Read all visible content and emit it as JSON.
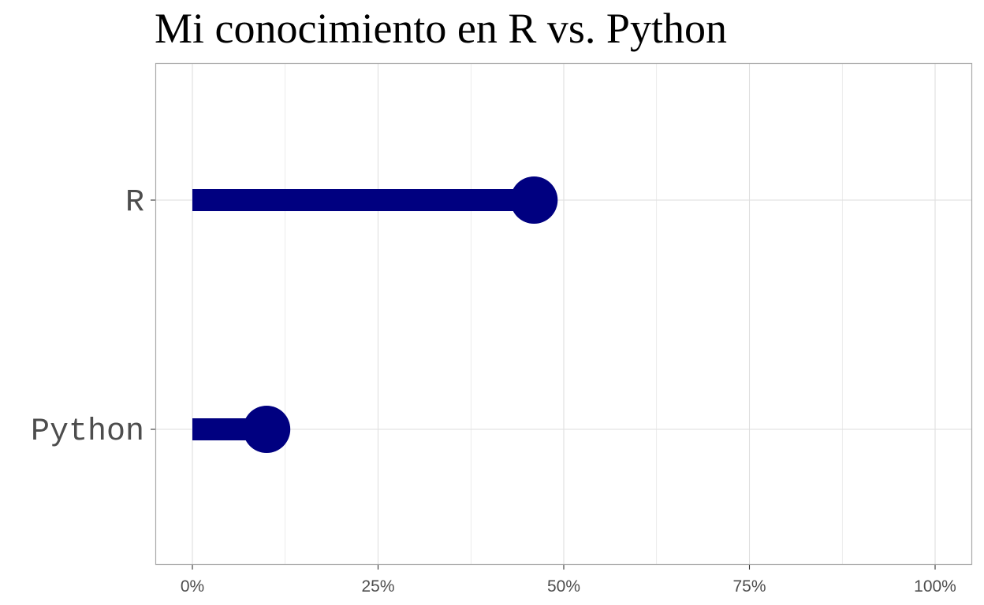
{
  "chart_data": {
    "type": "bar",
    "subtype": "lollipop",
    "orientation": "horizontal",
    "title": "Mi conocimiento en R vs. Python",
    "categories": [
      "R",
      "Python"
    ],
    "values": [
      0.46,
      0.1
    ],
    "xlim": [
      0,
      1
    ],
    "x_ticks": [
      0,
      0.25,
      0.5,
      0.75,
      1.0
    ],
    "x_tick_labels": [
      "0%",
      "25%",
      "50%",
      "75%",
      "100%"
    ],
    "xlabel": "",
    "ylabel": "",
    "grid": true,
    "legend": "none",
    "colors": {
      "mark": "#000080",
      "grid": "#dedede",
      "border": "#a8a8a8",
      "text": "#4d4d4d"
    }
  }
}
